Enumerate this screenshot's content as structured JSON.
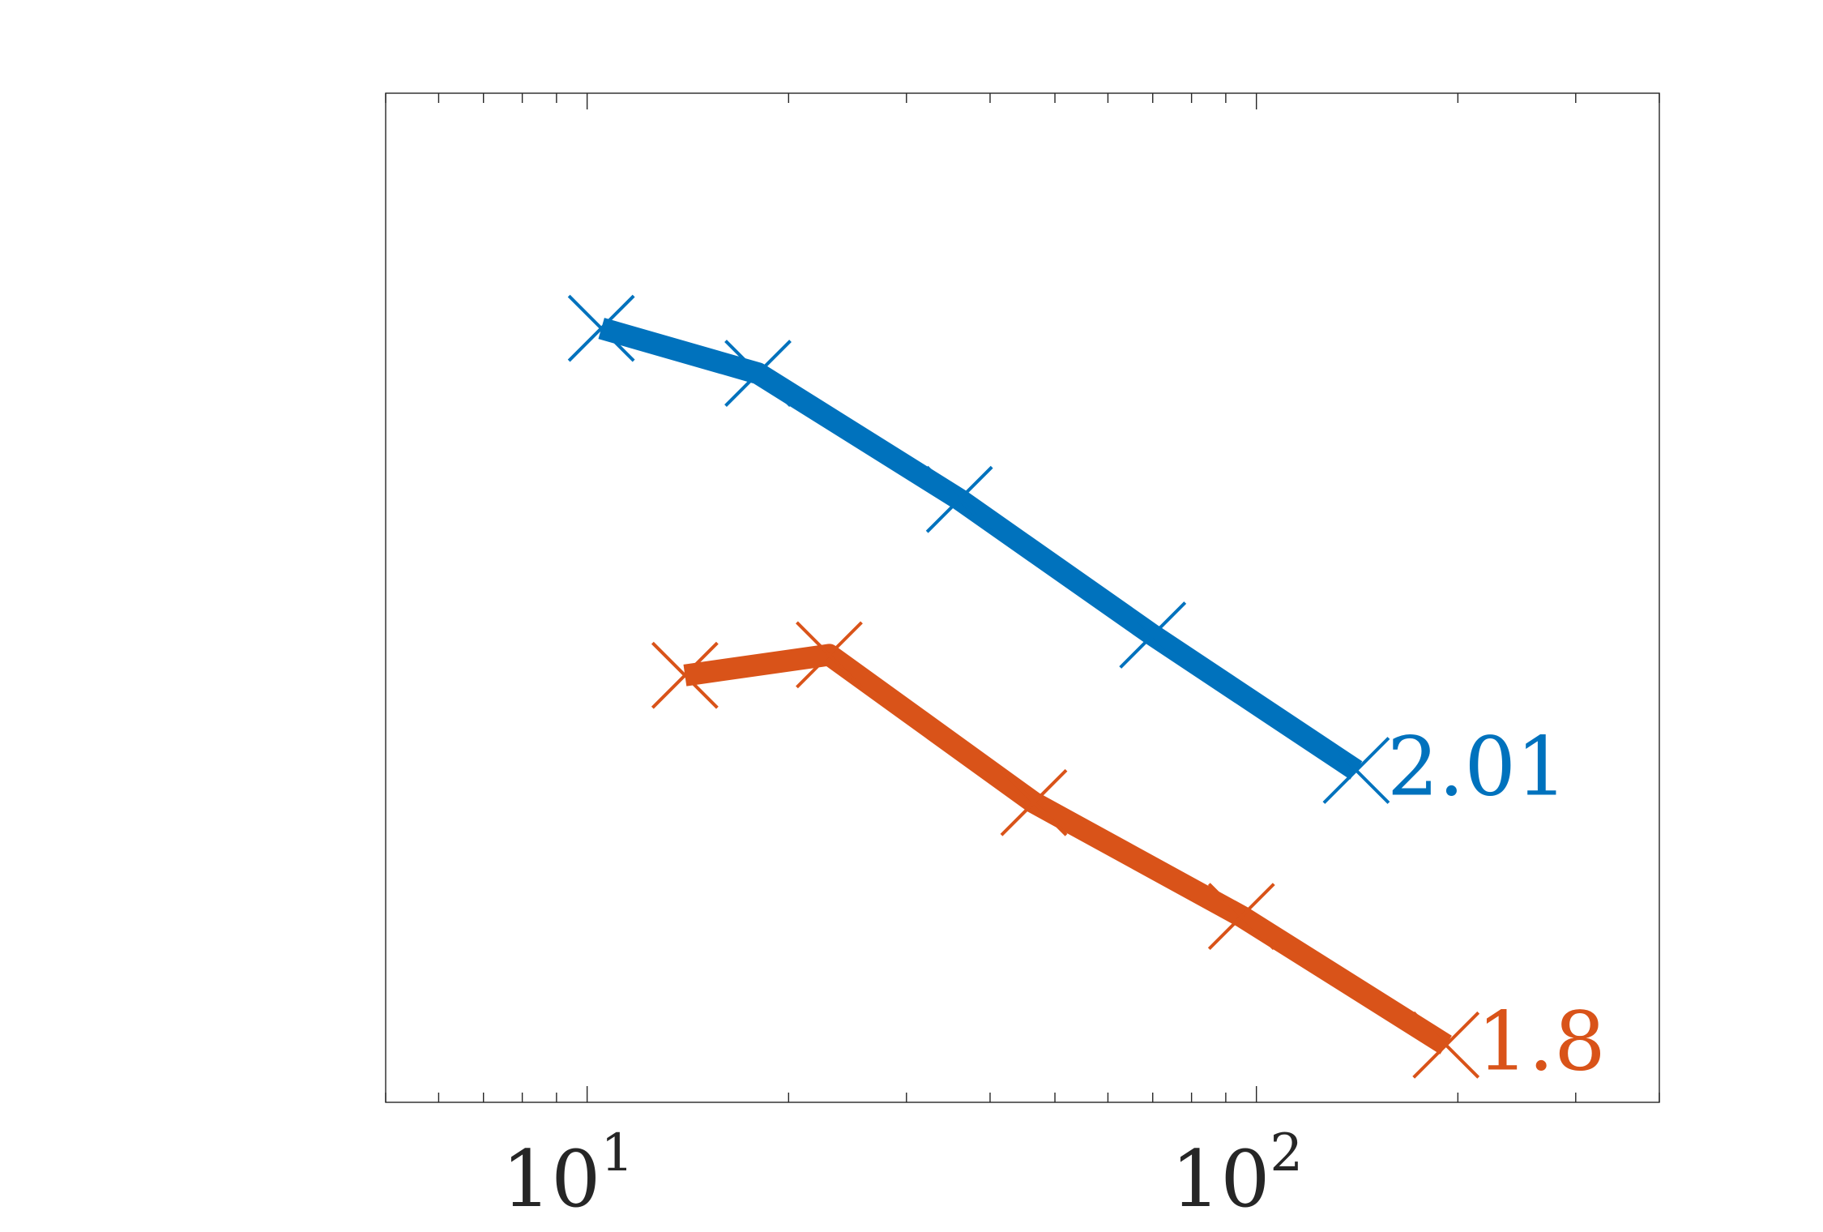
{
  "chart_data": {
    "type": "line",
    "title": "",
    "xlabel": "",
    "ylabel": "",
    "xscale": "log",
    "yscale": "log",
    "xlim": [
      5.0,
      400
    ],
    "ylim": [
      0.001,
      1
    ],
    "grid": false,
    "legend": "none",
    "x_tick_labels": [
      {
        "value": 10,
        "base": "10",
        "exp": "1"
      },
      {
        "value": 100,
        "base": "10",
        "exp": "2"
      }
    ],
    "series": [
      {
        "color": "#0072BD",
        "marker": "x",
        "x": [
          10.5,
          18.0,
          36.0,
          70.0,
          141.0
        ],
        "y": [
          0.2,
          0.147,
          0.062,
          0.0245,
          0.0097
        ],
        "end_label": "2.01"
      },
      {
        "color": "#D95319",
        "marker": "x",
        "x": [
          14.0,
          23.0,
          46.5,
          95.0,
          192.0
        ],
        "y": [
          0.0186,
          0.0214,
          0.00778,
          0.00357,
          0.00148
        ],
        "end_label": "1.8"
      }
    ]
  }
}
